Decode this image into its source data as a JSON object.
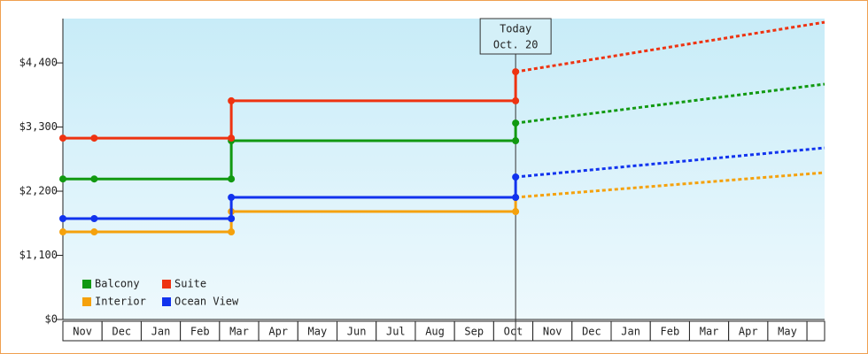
{
  "chart_data": {
    "type": "step-line",
    "categories": [
      "Nov",
      "Dec",
      "Jan",
      "Feb",
      "Mar",
      "Apr",
      "May",
      "Jun",
      "Jul",
      "Aug",
      "Sep",
      "Oct",
      "Nov",
      "Dec",
      "Jan",
      "Feb",
      "Mar",
      "Apr",
      "May",
      null
    ],
    "x": [
      0,
      0.8,
      4.3,
      4.3,
      11.56,
      11.56,
      19.45
    ],
    "xlim": [
      0,
      19.45
    ],
    "today_x": 11.56,
    "today_label": [
      "Today",
      "Oct. 20"
    ],
    "series": [
      {
        "name": "Balcony",
        "color": "#119911",
        "values": [
          2410,
          2410,
          2410,
          3065,
          3065,
          3368,
          4036
        ]
      },
      {
        "name": "Suite",
        "color": "#ee3311",
        "values": [
          3110,
          3110,
          3110,
          3750,
          3750,
          4248,
          5098
        ]
      },
      {
        "name": "Interior",
        "color": "#f5a10c",
        "values": [
          1502,
          1502,
          1502,
          1851,
          1851,
          2094,
          2519
        ]
      },
      {
        "name": "Ocean View",
        "color": "#1133ee",
        "values": [
          1730,
          1730,
          1730,
          2094,
          2094,
          2443,
          2943
        ]
      }
    ],
    "ylim": [
      0,
      5160
    ],
    "yticks": [
      {
        "value": 0,
        "label": "$0"
      },
      {
        "value": 1100,
        "label": "$1,100"
      },
      {
        "value": 2200,
        "label": "$2,200"
      },
      {
        "value": 3300,
        "label": "$3,300"
      },
      {
        "value": 4400,
        "label": "$4,400"
      }
    ],
    "grid": false,
    "legend": "lower-left"
  }
}
